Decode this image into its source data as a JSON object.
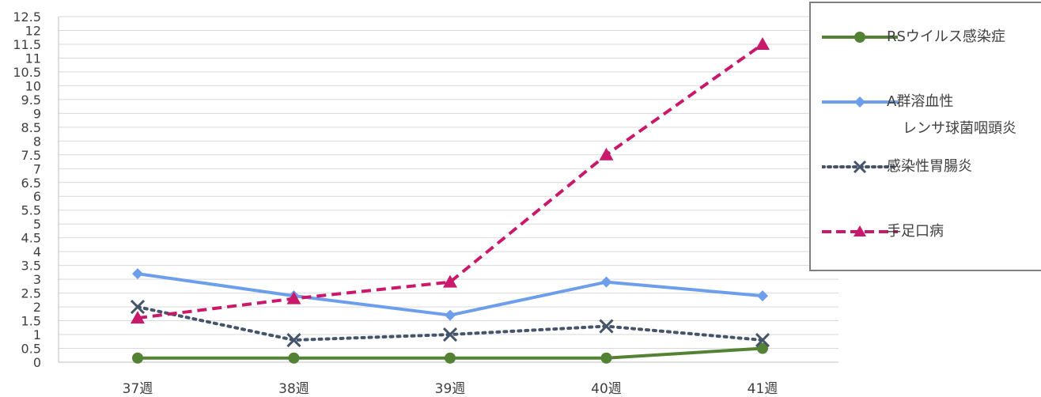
{
  "chart_data": {
    "type": "line",
    "categories": [
      "37週",
      "38週",
      "39週",
      "40週",
      "41週"
    ],
    "ylim": [
      0,
      12.5
    ],
    "yticks": [
      "0",
      "0.5",
      "1",
      "1.5",
      "2",
      "2.5",
      "3",
      "3.5",
      "4",
      "4.5",
      "5",
      "5.5",
      "6",
      "6.5",
      "7",
      "7.5",
      "8",
      "8.5",
      "9",
      "9.5",
      "10",
      "10.5",
      "11",
      "11.5",
      "12",
      "12.5"
    ],
    "grid": true,
    "legend_position": "right",
    "series": [
      {
        "name": "RSウイルス感染症",
        "values": [
          0.15,
          0.15,
          0.15,
          0.15,
          0.5
        ],
        "color": "#548235",
        "marker": "circle",
        "dash": "solid"
      },
      {
        "name": "A群溶血性",
        "name_line2": "レンサ球菌咽頭炎",
        "values": [
          3.2,
          2.4,
          1.7,
          2.9,
          2.4
        ],
        "color": "#6d9eeb",
        "marker": "diamond",
        "dash": "solid"
      },
      {
        "name": "感染性胃腸炎",
        "values": [
          2.0,
          0.8,
          1.0,
          1.3,
          0.8
        ],
        "color": "#44546a",
        "marker": "x",
        "dash": "dotted"
      },
      {
        "name": "手足口病",
        "values": [
          1.6,
          2.3,
          2.9,
          7.5,
          11.5
        ],
        "color": "#c9196b",
        "marker": "triangle",
        "dash": "dashed"
      }
    ]
  }
}
